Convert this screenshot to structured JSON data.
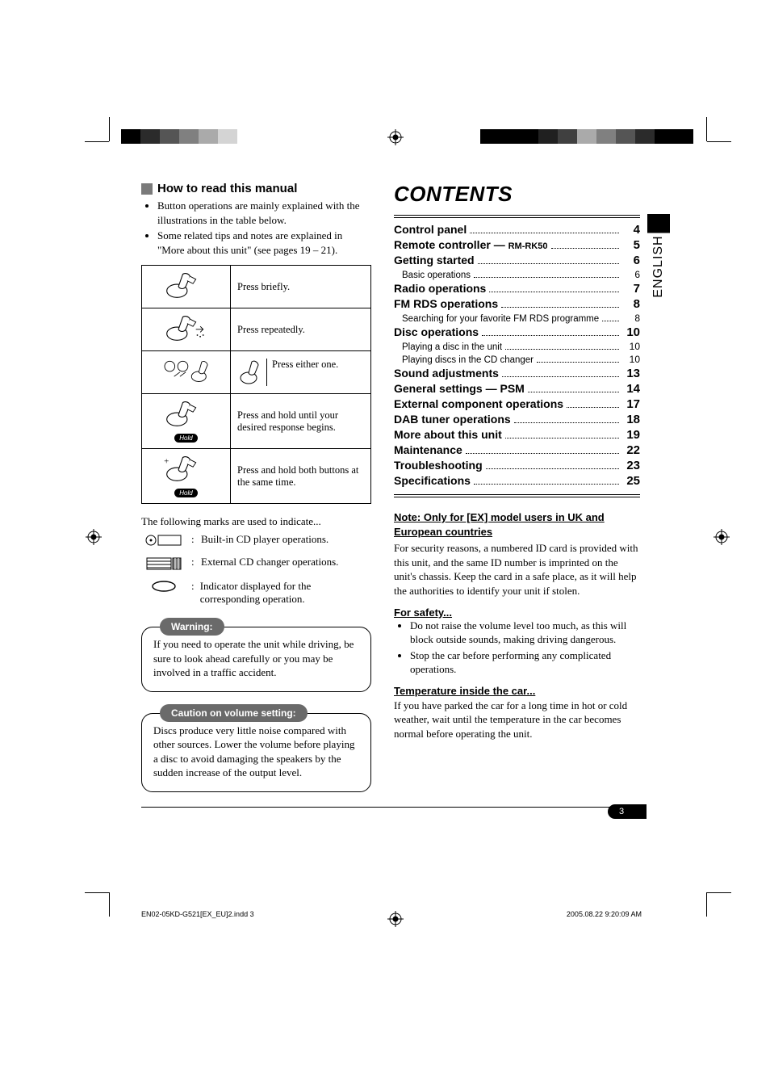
{
  "colorbar": {
    "left": [
      "#000000",
      "#2b2b2b",
      "#555555",
      "#808080",
      "#aaaaaa",
      "#d4d4d4",
      "#ffffff",
      "#ffffff",
      "#ffffff",
      "#ffffff",
      "#ffffff"
    ],
    "right": [
      "#000000",
      "#000000",
      "#2b2b2b",
      "#555555",
      "#808080",
      "#aaaaaa",
      "#404040",
      "#202020",
      "#000000",
      "#000000",
      "#000000"
    ]
  },
  "left": {
    "heading": "How to read this manual",
    "bullets": [
      "Button operations are mainly explained with the illustrations in the table below.",
      "Some related tips and notes are explained in \"More about this unit\" (see pages 19 – 21)."
    ],
    "ops": [
      {
        "desc": "Press briefly."
      },
      {
        "desc": "Press repeatedly."
      },
      {
        "desc": "Press either one.",
        "split": true
      },
      {
        "desc": "Press and hold until your desired response begins.",
        "hold": true
      },
      {
        "desc": "Press and hold both buttons at the same time.",
        "hold": true,
        "plus": true
      }
    ],
    "hold_label": "Hold",
    "marks_intro": "The following marks are used to indicate...",
    "marks": [
      {
        "glyph": "cd-unit",
        "desc": "Built-in CD player operations."
      },
      {
        "glyph": "changer",
        "desc": "External CD changer operations."
      },
      {
        "glyph": "oval",
        "desc": "Indicator displayed for the corresponding operation."
      }
    ],
    "warning": {
      "label": "Warning:",
      "text": "If you need to operate the unit while driving, be sure to look ahead carefully or you may be involved in a traffic accident."
    },
    "caution": {
      "label": "Caution on volume setting:",
      "text": "Discs produce very little noise compared with other sources. Lower the volume before playing a disc to avoid damaging the speakers by the sudden increase of the output level."
    }
  },
  "right": {
    "title": "CONTENTS",
    "lang_tab": "ENGLISH",
    "toc": [
      {
        "label": "Control panel",
        "page": "4"
      },
      {
        "label": "Remote controller —",
        "suffix": "RM-RK50",
        "page": "5"
      },
      {
        "label": "Getting started",
        "page": "6",
        "subs": [
          {
            "label": "Basic operations",
            "page": "6"
          }
        ]
      },
      {
        "label": "Radio operations",
        "page": "7"
      },
      {
        "label": "FM RDS operations",
        "page": "8",
        "subs": [
          {
            "label": "Searching for your favorite FM RDS programme",
            "page": "8"
          }
        ]
      },
      {
        "label": "Disc operations",
        "page": "10",
        "subs": [
          {
            "label": "Playing a disc in the unit",
            "page": "10"
          },
          {
            "label": "Playing discs in the CD changer",
            "page": "10"
          }
        ]
      },
      {
        "label": "Sound adjustments",
        "page": "13"
      },
      {
        "label": "General settings — PSM",
        "page": "14"
      },
      {
        "label": "External component operations",
        "page": "17"
      },
      {
        "label": "DAB tuner operations",
        "page": "18"
      },
      {
        "label": "More about this unit",
        "page": "19"
      },
      {
        "label": "Maintenance",
        "page": "22"
      },
      {
        "label": "Troubleshooting",
        "page": "23"
      },
      {
        "label": "Specifications",
        "page": "25"
      }
    ],
    "note_head": "Note: Only for [EX] model users in UK and European countries",
    "note_body": "For security reasons, a numbered ID card is provided with this unit, and the same ID number is imprinted on the unit's chassis. Keep the card in a safe place, as it will help the authorities to identify your unit if stolen.",
    "safety_head": "For safety...",
    "safety_bullets": [
      "Do not raise the volume level too much, as this will block outside sounds, making driving dangerous.",
      "Stop the car before performing any complicated operations."
    ],
    "temp_head": "Temperature inside the car...",
    "temp_body": "If you have parked the car for a long time in hot or cold weather, wait until the temperature in the car becomes normal before operating the unit."
  },
  "page_number": "3",
  "footer": {
    "file": "EN02-05KD-G521[EX_EU]2.indd   3",
    "stamp": "2005.08.22   9:20:09 AM"
  }
}
